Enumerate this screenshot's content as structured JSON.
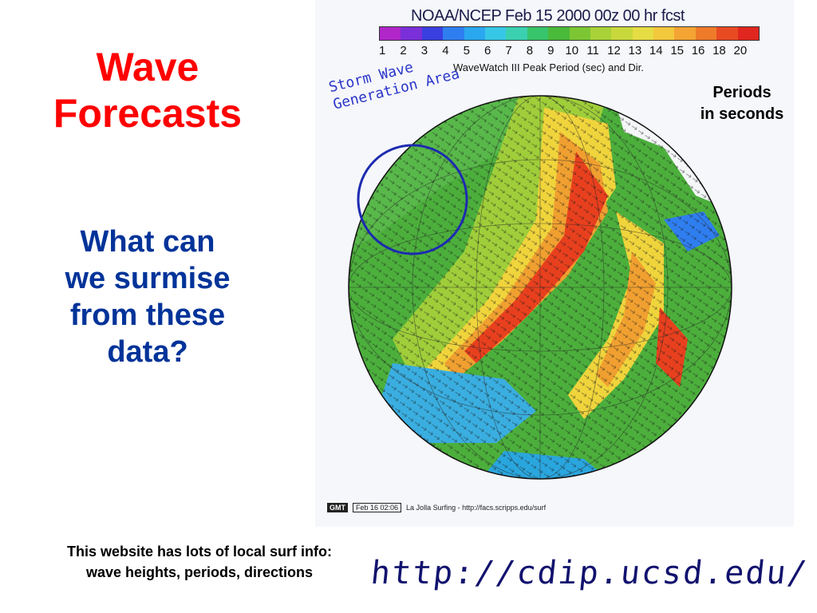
{
  "slide": {
    "title_line1": "Wave",
    "title_line2": "Forecasts",
    "question_line1": "What can",
    "question_line2": "we surmise",
    "question_line3": "from these",
    "question_line4": "data?",
    "footnote_line1": "This website has lots of local surf info:",
    "footnote_line2": "wave heights, periods, directions",
    "periods_line1": "Periods",
    "periods_line2": "in seconds"
  },
  "map": {
    "header": "NOAA/NCEP Feb 15 2000 00z 00 hr fcst",
    "caption": "WaveWatch III Peak Period (sec) and Dir.",
    "scale_labels": [
      "1",
      "2",
      "3",
      "4",
      "5",
      "6",
      "7",
      "8",
      "9",
      "10",
      "11",
      "12",
      "13",
      "14",
      "15",
      "16",
      "18",
      "20"
    ],
    "scale_colors": [
      "#b026c9",
      "#7a2fd9",
      "#3a3fe0",
      "#2f7ef0",
      "#2aa8ef",
      "#36c6e6",
      "#3ad0b0",
      "#38c46a",
      "#4aba3a",
      "#7cc634",
      "#a8d238",
      "#c8d83c",
      "#e6dc44",
      "#f4c83c",
      "#f3a433",
      "#ee7a2a",
      "#e84a22",
      "#e0261e"
    ],
    "credit_tag": "GMT",
    "credit_date": "Feb 16 02:06",
    "credit_text": "La Jolla Surfing - http://facs.scripps.edu/surf",
    "storm_note_line1": "Storm Wave",
    "storm_note_line2": "Generation Area",
    "url": "http://cdip.ucsd.edu/"
  }
}
